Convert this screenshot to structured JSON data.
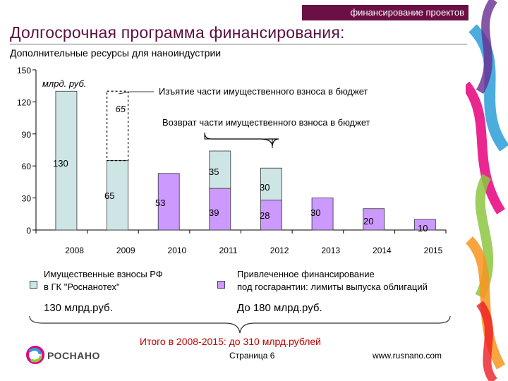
{
  "header": {
    "tagline": "финансирование проектов",
    "title": "Долгосрочная программа финансирования:",
    "subtitle": "Дополнительные ресурсы для наноиндустрии"
  },
  "chart_data": {
    "type": "bar",
    "stacked": true,
    "unit_label": "млрд. руб.",
    "categories": [
      "2008",
      "2009",
      "2010",
      "2011",
      "2012",
      "2013",
      "2014",
      "2015"
    ],
    "y_ticks": [
      "0",
      "30",
      "60",
      "90",
      "120",
      "150"
    ],
    "ylim": [
      0,
      150
    ],
    "grid": false,
    "series": [
      {
        "name": "Имущественные взносы РФ в ГК \"Роснанотех\"",
        "color": "#cde5e5",
        "values": [
          130,
          65,
          null,
          35,
          30,
          null,
          null,
          null
        ],
        "labels": [
          "130",
          "65",
          "",
          "35",
          "30",
          "",
          "",
          ""
        ]
      },
      {
        "name": "Привлеченное финансирование под госгарантии: лимиты выпуска облигаций",
        "color": "#cc99ff",
        "values": [
          null,
          null,
          53,
          39,
          28,
          30,
          20,
          10
        ],
        "labels": [
          "",
          "",
          "53",
          "39",
          "28",
          "30",
          "20",
          "10"
        ]
      }
    ],
    "withdrawal": {
      "category": "2009",
      "value": 65,
      "label": "65"
    },
    "annotations": {
      "withdrawal": "Изъятие части имущественного взноса в бюджет",
      "return": "Возврат части имущественного взноса в бюджет"
    }
  },
  "legend": {
    "left_line1": "Имущественные взносы РФ",
    "left_line2": "в ГК \"Роснанотех\"",
    "right_line1": "Привлеченное финансирование",
    "right_line2": "под госгарантии: лимиты выпуска облигаций"
  },
  "totals": {
    "left": "130 млрд.руб.",
    "right": "До 180 млрд.руб.",
    "grand": "Итого в 2008-2015: до 310 млрд.рублей"
  },
  "footer": {
    "logo_text": "РОСНАНО",
    "page": "Страница 6",
    "site": "www.rusnano.com"
  },
  "colors": {
    "brand": "#6b1045",
    "state_series": "#cde5e5",
    "bond_series": "#cc99ff",
    "grand_total": "#c00000"
  }
}
